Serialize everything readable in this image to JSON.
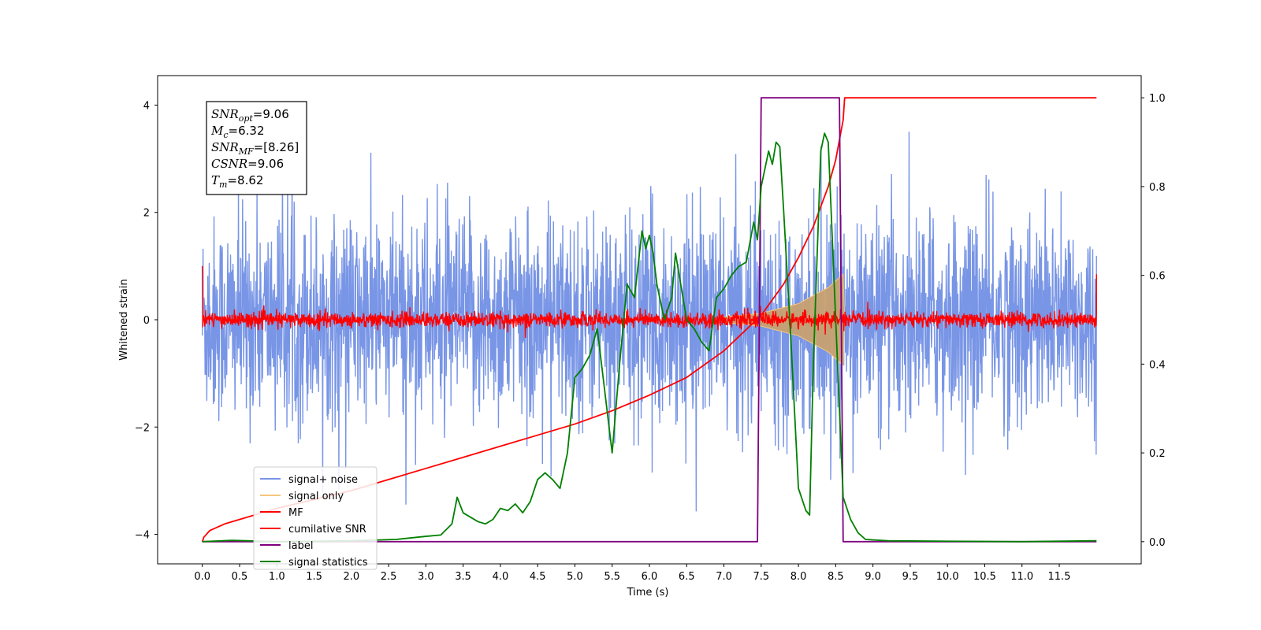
{
  "chart_data": {
    "type": "line",
    "title": "",
    "xlabel": "Time (s)",
    "ylabel": "Whitened strain",
    "y2label": "",
    "xlim": [
      -0.6,
      12.6
    ],
    "ylim": [
      -4.55,
      4.55
    ],
    "y2lim": [
      -0.05,
      1.05
    ],
    "x_ticks": [
      "0.0",
      "0.5",
      "1.0",
      "1.5",
      "2.0",
      "2.5",
      "3.0",
      "3.5",
      "4.0",
      "4.5",
      "5.0",
      "5.5",
      "6.0",
      "6.5",
      "7.0",
      "7.5",
      "8.0",
      "8.5",
      "9.0",
      "9.5",
      "10.0",
      "10.5",
      "11.0",
      "11.5"
    ],
    "x_tick_values": [
      0,
      0.5,
      1,
      1.5,
      2,
      2.5,
      3,
      3.5,
      4,
      4.5,
      5,
      5.5,
      6,
      6.5,
      7,
      7.5,
      8,
      8.5,
      9,
      9.5,
      10,
      10.5,
      11,
      11.5
    ],
    "y_ticks": [
      "−4",
      "−2",
      "0",
      "2",
      "4"
    ],
    "y_tick_values": [
      -4,
      -2,
      0,
      2,
      4
    ],
    "y2_ticks": [
      "0.0",
      "0.2",
      "0.4",
      "0.6",
      "0.8",
      "1.0"
    ],
    "y2_tick_values": [
      0,
      0.2,
      0.4,
      0.6,
      0.8,
      1.0
    ],
    "grid": false,
    "legend_position": "lower-left",
    "annotation": {
      "lines": [
        {
          "sym": "SNR",
          "sub": "opt",
          "text": "=9.06"
        },
        {
          "sym": "M",
          "sub": "c",
          "text": "=6.32"
        },
        {
          "sym": "SNR",
          "sub": "MF",
          "text": "=[8.26]"
        },
        {
          "sym": "CSNR",
          "sub": "",
          "text": "=9.06"
        },
        {
          "sym": "T",
          "sub": "m",
          "text": "=8.62"
        }
      ]
    },
    "series": [
      {
        "name": "signal+ noise",
        "color": "#7895e6",
        "axis": "left",
        "style": "noise",
        "x_range": [
          0,
          12.0
        ],
        "amplitude_std": 1.0
      },
      {
        "name": "signal only",
        "color": "#f5c77e",
        "axis": "left",
        "style": "chirp",
        "x_range": [
          0,
          8.62
        ],
        "envelope": [
          [
            7.0,
            0.05
          ],
          [
            7.5,
            0.12
          ],
          [
            8.0,
            0.3
          ],
          [
            8.4,
            0.6
          ],
          [
            8.6,
            0.85
          ],
          [
            8.62,
            0.0
          ]
        ]
      },
      {
        "name": "MF",
        "color": "#ff0000",
        "axis": "left",
        "style": "mf",
        "x_range": [
          0,
          12.0
        ],
        "amplitude_std": 0.07,
        "edge_values": [
          1.0,
          0.85
        ]
      },
      {
        "name": "cumilative SNR",
        "color": "#ff0000",
        "axis": "right",
        "x": [
          0.0,
          0.02,
          0.1,
          0.3,
          0.5,
          1.0,
          1.5,
          2.0,
          2.5,
          3.0,
          3.5,
          4.0,
          4.5,
          5.0,
          5.5,
          6.0,
          6.5,
          7.0,
          7.5,
          7.8,
          8.0,
          8.2,
          8.4,
          8.5,
          8.6,
          8.62,
          9.0,
          10.0,
          11.0,
          12.0
        ],
        "y": [
          0.0,
          0.01,
          0.025,
          0.04,
          0.05,
          0.075,
          0.095,
          0.115,
          0.14,
          0.165,
          0.19,
          0.215,
          0.24,
          0.265,
          0.295,
          0.33,
          0.37,
          0.43,
          0.51,
          0.58,
          0.64,
          0.71,
          0.8,
          0.86,
          0.95,
          1.0,
          1.0,
          1.0,
          1.0,
          1.0
        ]
      },
      {
        "name": "label",
        "color": "#800080",
        "axis": "right",
        "x": [
          0.0,
          7.45,
          7.5,
          8.55,
          8.6,
          12.0
        ],
        "y": [
          0.0,
          0.0,
          1.0,
          1.0,
          0.0,
          0.0
        ]
      },
      {
        "name": "signal statistics",
        "color": "#008000",
        "axis": "right",
        "x": [
          0.0,
          0.4,
          1.0,
          2.0,
          2.6,
          3.0,
          3.2,
          3.35,
          3.42,
          3.5,
          3.6,
          3.7,
          3.8,
          3.9,
          4.0,
          4.1,
          4.2,
          4.3,
          4.4,
          4.5,
          4.6,
          4.7,
          4.8,
          4.9,
          5.0,
          5.1,
          5.2,
          5.3,
          5.4,
          5.5,
          5.6,
          5.7,
          5.8,
          5.9,
          5.95,
          6.0,
          6.05,
          6.1,
          6.2,
          6.3,
          6.35,
          6.4,
          6.5,
          6.6,
          6.7,
          6.8,
          6.9,
          7.0,
          7.1,
          7.2,
          7.3,
          7.4,
          7.45,
          7.5,
          7.6,
          7.65,
          7.7,
          7.75,
          7.8,
          7.9,
          8.0,
          8.1,
          8.15,
          8.2,
          8.3,
          8.35,
          8.4,
          8.5,
          8.6,
          8.7,
          8.8,
          8.9,
          9.2,
          10.0,
          11.0,
          12.0
        ],
        "y": [
          0.0,
          0.003,
          0.0,
          0.002,
          0.005,
          0.012,
          0.015,
          0.04,
          0.1,
          0.065,
          0.055,
          0.045,
          0.04,
          0.05,
          0.075,
          0.07,
          0.085,
          0.065,
          0.09,
          0.14,
          0.155,
          0.14,
          0.12,
          0.2,
          0.37,
          0.39,
          0.42,
          0.48,
          0.34,
          0.2,
          0.4,
          0.58,
          0.55,
          0.7,
          0.66,
          0.69,
          0.65,
          0.58,
          0.5,
          0.55,
          0.65,
          0.6,
          0.5,
          0.48,
          0.45,
          0.43,
          0.55,
          0.57,
          0.6,
          0.62,
          0.63,
          0.72,
          0.68,
          0.8,
          0.88,
          0.85,
          0.9,
          0.89,
          0.75,
          0.45,
          0.12,
          0.07,
          0.06,
          0.4,
          0.88,
          0.92,
          0.9,
          0.5,
          0.1,
          0.05,
          0.02,
          0.005,
          0.002,
          0.001,
          0.0,
          0.002
        ]
      }
    ]
  }
}
